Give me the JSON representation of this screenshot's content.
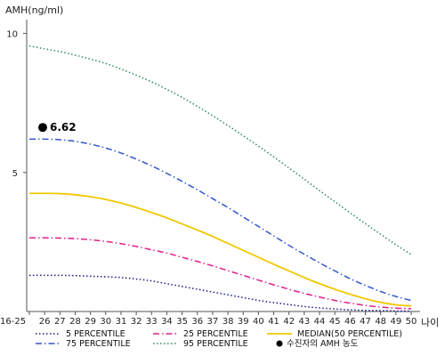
{
  "chart_data": {
    "type": "line",
    "ylabel": "AMH(ng/ml)",
    "xlabel": "나이",
    "categories": [
      "16-25",
      "26",
      "27",
      "28",
      "29",
      "30",
      "31",
      "32",
      "33",
      "34",
      "35",
      "36",
      "37",
      "38",
      "39",
      "40",
      "41",
      "42",
      "43",
      "44",
      "45",
      "46",
      "47",
      "48",
      "49",
      "50"
    ],
    "ylim": [
      0,
      10.5
    ],
    "yticks": [
      "5",
      "10"
    ],
    "grid": false,
    "legend_position": "bottom",
    "series": [
      {
        "name": "5 PERCENTILE",
        "color": "#1a1a8c",
        "style": "dotted",
        "values": [
          1.3,
          1.3,
          1.3,
          1.29,
          1.27,
          1.25,
          1.22,
          1.17,
          1.1,
          1.0,
          0.9,
          0.8,
          0.7,
          0.6,
          0.5,
          0.4,
          0.32,
          0.25,
          0.18,
          0.13,
          0.09,
          0.06,
          0.04,
          0.03,
          0.02,
          0.01
        ]
      },
      {
        "name": "25 PERCENTILE",
        "color": "#e0208a",
        "style": "dashdot",
        "values": [
          2.65,
          2.65,
          2.64,
          2.62,
          2.58,
          2.52,
          2.44,
          2.34,
          2.22,
          2.1,
          1.95,
          1.8,
          1.64,
          1.47,
          1.3,
          1.13,
          0.96,
          0.8,
          0.65,
          0.52,
          0.4,
          0.3,
          0.22,
          0.16,
          0.12,
          0.1
        ]
      },
      {
        "name": "MEDIAN(50 PERCENTILE)",
        "color": "#f0c800",
        "style": "solid",
        "values": [
          4.25,
          4.25,
          4.24,
          4.2,
          4.13,
          4.03,
          3.9,
          3.74,
          3.56,
          3.37,
          3.15,
          2.93,
          2.7,
          2.45,
          2.2,
          1.95,
          1.7,
          1.46,
          1.22,
          1.0,
          0.8,
          0.62,
          0.46,
          0.33,
          0.24,
          0.2
        ]
      },
      {
        "name": "75 PERCENTILE",
        "color": "#3355cc",
        "style": "dashdot",
        "values": [
          6.2,
          6.2,
          6.18,
          6.12,
          6.02,
          5.88,
          5.7,
          5.48,
          5.24,
          4.97,
          4.68,
          4.38,
          4.06,
          3.74,
          3.4,
          3.06,
          2.72,
          2.38,
          2.06,
          1.75,
          1.46,
          1.18,
          0.94,
          0.72,
          0.54,
          0.4
        ]
      },
      {
        "name": "95 PERCENTILE",
        "color": "#2e8b57",
        "style": "dotted",
        "values": [
          9.55,
          9.45,
          9.35,
          9.22,
          9.08,
          8.92,
          8.72,
          8.5,
          8.26,
          7.99,
          7.7,
          7.38,
          7.04,
          6.69,
          6.32,
          5.95,
          5.56,
          5.16,
          4.76,
          4.35,
          3.95,
          3.55,
          3.16,
          2.78,
          2.4,
          2.05
        ]
      }
    ],
    "marker": {
      "name": "수진자의 AMH 농도",
      "category": "26",
      "value": 6.62,
      "label": "6.62",
      "color": "#000000"
    }
  }
}
